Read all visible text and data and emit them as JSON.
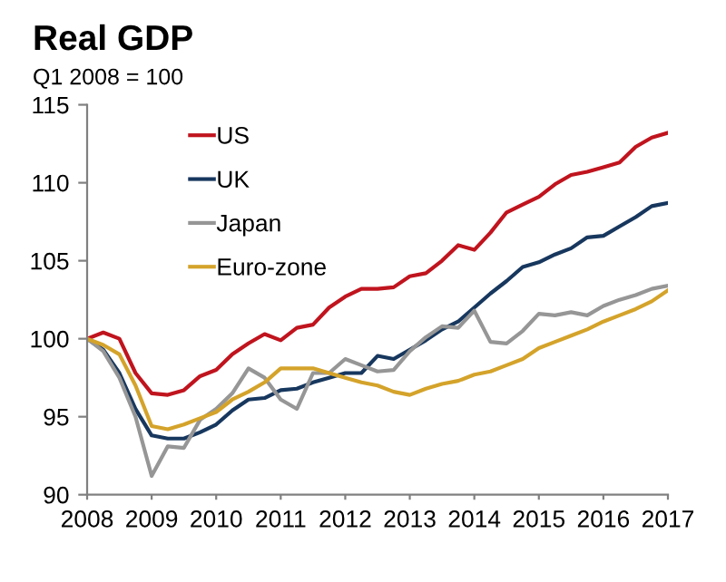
{
  "chart_data": {
    "type": "line",
    "title": "Real GDP",
    "subtitle": "Q1 2008 = 100",
    "x": [
      2008,
      2008.25,
      2008.5,
      2008.75,
      2009,
      2009.25,
      2009.5,
      2009.75,
      2010,
      2010.25,
      2010.5,
      2010.75,
      2011,
      2011.25,
      2011.5,
      2011.75,
      2012,
      2012.25,
      2012.5,
      2012.75,
      2013,
      2013.25,
      2013.5,
      2013.75,
      2014,
      2014.25,
      2014.5,
      2014.75,
      2015,
      2015.25,
      2015.5,
      2015.75,
      2016,
      2016.25,
      2016.5,
      2016.75,
      2017
    ],
    "series": [
      {
        "name": "US",
        "color": "#c0141e",
        "values": [
          100,
          100.4,
          100.0,
          97.8,
          96.5,
          96.4,
          96.7,
          97.6,
          98.0,
          99.0,
          99.7,
          100.3,
          99.9,
          100.7,
          100.9,
          102.0,
          102.7,
          103.2,
          103.2,
          103.3,
          104.0,
          104.2,
          105.0,
          106.0,
          105.7,
          106.8,
          108.1,
          108.6,
          109.1,
          109.9,
          110.5,
          110.7,
          111.0,
          111.3,
          112.3,
          112.9,
          113.2
        ]
      },
      {
        "name": "UK",
        "color": "#17375e",
        "values": [
          100,
          99.3,
          97.8,
          95.5,
          93.8,
          93.6,
          93.6,
          94.0,
          94.5,
          95.4,
          96.1,
          96.2,
          96.7,
          96.8,
          97.2,
          97.5,
          97.8,
          97.8,
          98.9,
          98.7,
          99.3,
          99.9,
          100.6,
          101.1,
          102.0,
          102.9,
          103.7,
          104.6,
          104.9,
          105.4,
          105.8,
          106.5,
          106.6,
          107.2,
          107.8,
          108.5,
          108.7
        ]
      },
      {
        "name": "Japan",
        "color": "#969696",
        "values": [
          100,
          99.2,
          97.5,
          95.0,
          91.2,
          93.1,
          93.0,
          94.8,
          95.5,
          96.5,
          98.1,
          97.5,
          96.1,
          95.5,
          97.8,
          97.8,
          98.7,
          98.3,
          97.9,
          98.0,
          99.2,
          100.1,
          100.8,
          100.7,
          101.8,
          99.8,
          99.7,
          100.5,
          101.6,
          101.5,
          101.7,
          101.5,
          102.1,
          102.5,
          102.8,
          103.2,
          103.4
        ]
      },
      {
        "name": "Euro-zone",
        "color": "#d4a32a",
        "values": [
          100,
          99.6,
          99.0,
          97.0,
          94.4,
          94.2,
          94.5,
          94.9,
          95.3,
          96.1,
          96.6,
          97.2,
          98.1,
          98.1,
          98.1,
          97.8,
          97.5,
          97.2,
          97.0,
          96.6,
          96.4,
          96.8,
          97.1,
          97.3,
          97.7,
          97.9,
          98.3,
          98.7,
          99.4,
          99.8,
          100.2,
          100.6,
          101.1,
          101.5,
          101.9,
          102.4,
          103.1
        ]
      }
    ],
    "xlim": [
      2008,
      2017
    ],
    "xticks": [
      2008,
      2009,
      2010,
      2011,
      2012,
      2013,
      2014,
      2015,
      2016,
      2017
    ],
    "ylim": [
      90,
      115
    ],
    "yticks": [
      90,
      95,
      100,
      105,
      110,
      115
    ],
    "grid": false,
    "legend": "top left",
    "line_style": "solid",
    "marker": "none"
  }
}
